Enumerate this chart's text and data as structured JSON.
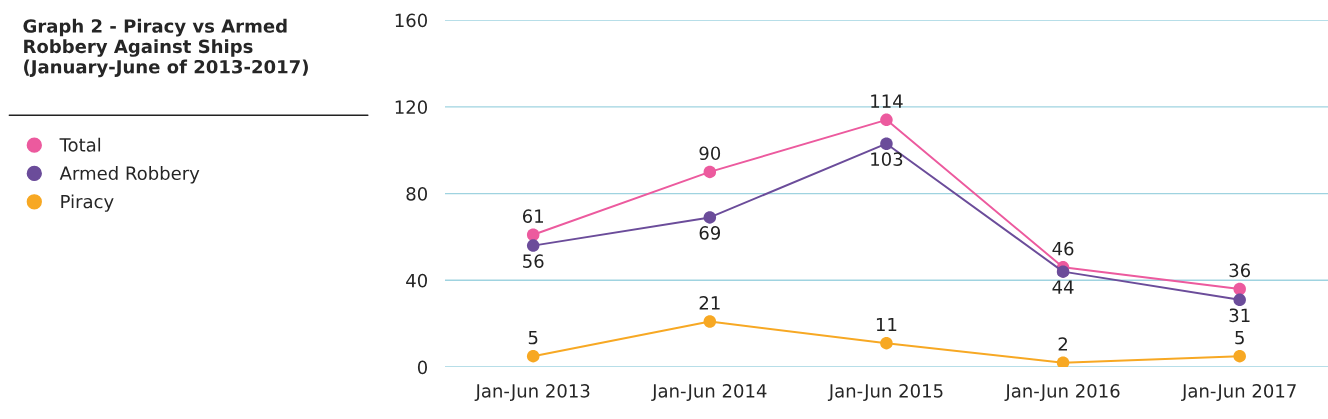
{
  "chart_data": {
    "type": "line",
    "title": "Graph 2 - Piracy vs Armed Robbery Against Ships (January-June of 2013-2017)",
    "categories": [
      "Jan-Jun 2013",
      "Jan-Jun 2014",
      "Jan-Jun 2015",
      "Jan-Jun 2016",
      "Jan-Jun 2017"
    ],
    "series": [
      {
        "name": "Total",
        "color": "#ec5a9e",
        "values": [
          61,
          90,
          114,
          46,
          36
        ]
      },
      {
        "name": "Armed Robbery",
        "color": "#6b4c9a",
        "values": [
          56,
          69,
          103,
          44,
          31
        ]
      },
      {
        "name": "Piracy",
        "color": "#f7a823",
        "values": [
          5,
          21,
          11,
          2,
          5
        ]
      }
    ],
    "ylim": [
      0,
      160
    ],
    "yticks": [
      0,
      40,
      80,
      120,
      160
    ],
    "grid": "y",
    "legend": "left",
    "marker": "circle",
    "line_style": "solid",
    "data_labels": true
  }
}
